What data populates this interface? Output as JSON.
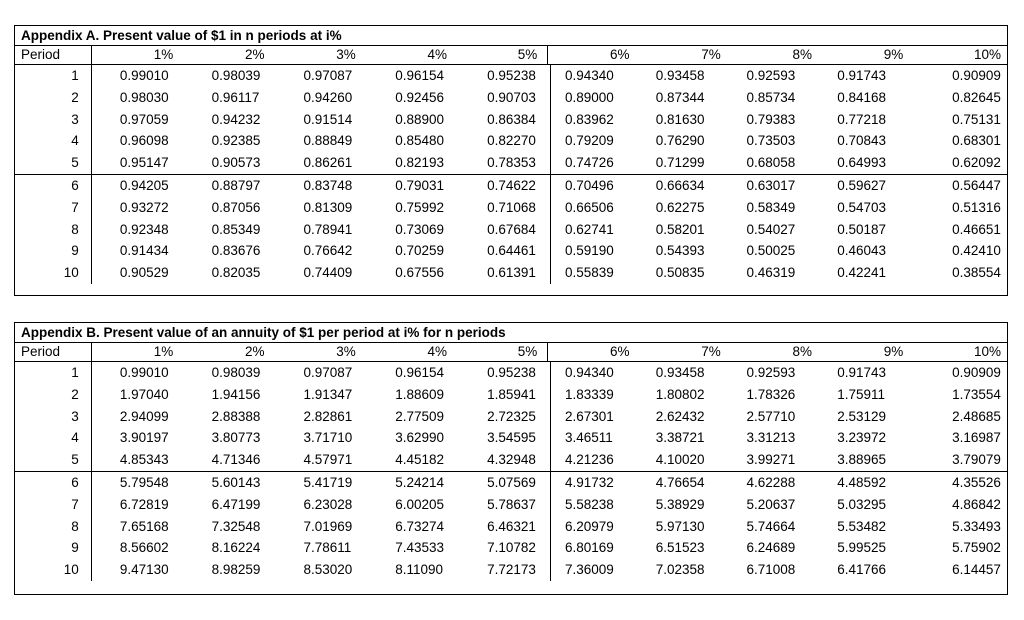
{
  "tableA": {
    "title": "Appendix A. Present value of $1 in n periods at i%",
    "period_label": "Period",
    "rates": [
      "1%",
      "2%",
      "3%",
      "4%",
      "5%",
      "6%",
      "7%",
      "8%",
      "9%",
      "10%"
    ],
    "rows": [
      {
        "period": "1",
        "values": [
          "0.99010",
          "0.98039",
          "0.97087",
          "0.96154",
          "0.95238",
          "0.94340",
          "0.93458",
          "0.92593",
          "0.91743",
          "0.90909"
        ]
      },
      {
        "period": "2",
        "values": [
          "0.98030",
          "0.96117",
          "0.94260",
          "0.92456",
          "0.90703",
          "0.89000",
          "0.87344",
          "0.85734",
          "0.84168",
          "0.82645"
        ]
      },
      {
        "period": "3",
        "values": [
          "0.97059",
          "0.94232",
          "0.91514",
          "0.88900",
          "0.86384",
          "0.83962",
          "0.81630",
          "0.79383",
          "0.77218",
          "0.75131"
        ]
      },
      {
        "period": "4",
        "values": [
          "0.96098",
          "0.92385",
          "0.88849",
          "0.85480",
          "0.82270",
          "0.79209",
          "0.76290",
          "0.73503",
          "0.70843",
          "0.68301"
        ]
      },
      {
        "period": "5",
        "values": [
          "0.95147",
          "0.90573",
          "0.86261",
          "0.82193",
          "0.78353",
          "0.74726",
          "0.71299",
          "0.68058",
          "0.64993",
          "0.62092"
        ]
      },
      {
        "period": "6",
        "values": [
          "0.94205",
          "0.88797",
          "0.83748",
          "0.79031",
          "0.74622",
          "0.70496",
          "0.66634",
          "0.63017",
          "0.59627",
          "0.56447"
        ]
      },
      {
        "period": "7",
        "values": [
          "0.93272",
          "0.87056",
          "0.81309",
          "0.75992",
          "0.71068",
          "0.66506",
          "0.62275",
          "0.58349",
          "0.54703",
          "0.51316"
        ]
      },
      {
        "period": "8",
        "values": [
          "0.92348",
          "0.85349",
          "0.78941",
          "0.73069",
          "0.67684",
          "0.62741",
          "0.58201",
          "0.54027",
          "0.50187",
          "0.46651"
        ]
      },
      {
        "period": "9",
        "values": [
          "0.91434",
          "0.83676",
          "0.76642",
          "0.70259",
          "0.64461",
          "0.59190",
          "0.54393",
          "0.50025",
          "0.46043",
          "0.42410"
        ]
      },
      {
        "period": "10",
        "values": [
          "0.90529",
          "0.82035",
          "0.74409",
          "0.67556",
          "0.61391",
          "0.55839",
          "0.50835",
          "0.46319",
          "0.42241",
          "0.38554"
        ]
      }
    ]
  },
  "tableB": {
    "title": "Appendix B. Present value of an annuity of $1 per period at i% for n periods",
    "period_label": "Period",
    "rates": [
      "1%",
      "2%",
      "3%",
      "4%",
      "5%",
      "6%",
      "7%",
      "8%",
      "9%",
      "10%"
    ],
    "rows": [
      {
        "period": "1",
        "values": [
          "0.99010",
          "0.98039",
          "0.97087",
          "0.96154",
          "0.95238",
          "0.94340",
          "0.93458",
          "0.92593",
          "0.91743",
          "0.90909"
        ]
      },
      {
        "period": "2",
        "values": [
          "1.97040",
          "1.94156",
          "1.91347",
          "1.88609",
          "1.85941",
          "1.83339",
          "1.80802",
          "1.78326",
          "1.75911",
          "1.73554"
        ]
      },
      {
        "period": "3",
        "values": [
          "2.94099",
          "2.88388",
          "2.82861",
          "2.77509",
          "2.72325",
          "2.67301",
          "2.62432",
          "2.57710",
          "2.53129",
          "2.48685"
        ]
      },
      {
        "period": "4",
        "values": [
          "3.90197",
          "3.80773",
          "3.71710",
          "3.62990",
          "3.54595",
          "3.46511",
          "3.38721",
          "3.31213",
          "3.23972",
          "3.16987"
        ]
      },
      {
        "period": "5",
        "values": [
          "4.85343",
          "4.71346",
          "4.57971",
          "4.45182",
          "4.32948",
          "4.21236",
          "4.10020",
          "3.99271",
          "3.88965",
          "3.79079"
        ]
      },
      {
        "period": "6",
        "values": [
          "5.79548",
          "5.60143",
          "5.41719",
          "5.24214",
          "5.07569",
          "4.91732",
          "4.76654",
          "4.62288",
          "4.48592",
          "4.35526"
        ]
      },
      {
        "period": "7",
        "values": [
          "6.72819",
          "6.47199",
          "6.23028",
          "6.00205",
          "5.78637",
          "5.58238",
          "5.38929",
          "5.20637",
          "5.03295",
          "4.86842"
        ]
      },
      {
        "period": "8",
        "values": [
          "7.65168",
          "7.32548",
          "7.01969",
          "6.73274",
          "6.46321",
          "6.20979",
          "5.97130",
          "5.74664",
          "5.53482",
          "5.33493"
        ]
      },
      {
        "period": "9",
        "values": [
          "8.56602",
          "8.16224",
          "7.78611",
          "7.43533",
          "7.10782",
          "6.80169",
          "6.51523",
          "6.24689",
          "5.99525",
          "5.75902"
        ]
      },
      {
        "period": "10",
        "values": [
          "9.47130",
          "8.98259",
          "8.53020",
          "8.11090",
          "7.72173",
          "7.36009",
          "7.02358",
          "6.71008",
          "6.41766",
          "6.14457"
        ]
      }
    ]
  }
}
